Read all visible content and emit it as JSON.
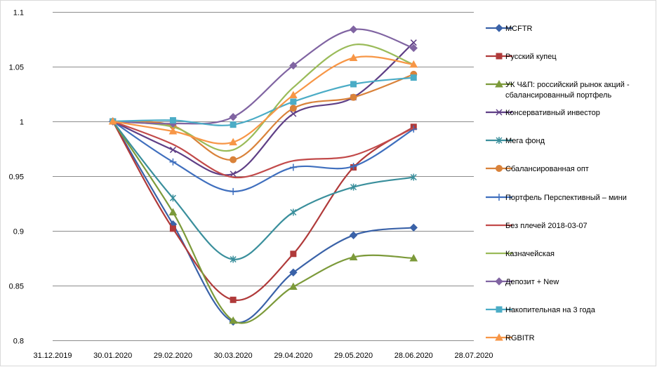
{
  "chart_data": {
    "type": "line",
    "title": "",
    "xlabel": "",
    "ylabel": "",
    "ylim": [
      0.8,
      1.1
    ],
    "yticks": [
      "0.8",
      "0.85",
      "0.9",
      "0.95",
      "1",
      "1.05",
      "1.1"
    ],
    "xtick_labels": [
      "31.12.2019",
      "30.01.2020",
      "29.02.2020",
      "30.03.2020",
      "29.04.2020",
      "29.05.2020",
      "28.06.2020",
      "28.07.2020"
    ],
    "x": [
      "30.01.2020",
      "29.02.2020",
      "30.03.2020",
      "29.04.2020",
      "29.05.2020",
      "28.06.2020"
    ],
    "grid": "horizontal",
    "legend": "right",
    "series": [
      {
        "name": "MCFTR",
        "color": "#3a62a8",
        "marker": "diamond",
        "values": [
          1.0,
          0.906,
          0.817,
          0.862,
          0.896,
          0.903
        ]
      },
      {
        "name": "Русский купец",
        "color": "#b03a3a",
        "marker": "square",
        "values": [
          1.0,
          0.902,
          0.837,
          0.879,
          0.958,
          0.995
        ]
      },
      {
        "name": "УК Ч&П:  российский рынок акций - сбалансированный портфель",
        "color": "#7c9a3a",
        "marker": "triangle",
        "values": [
          1.0,
          0.917,
          0.818,
          0.849,
          0.876,
          0.875
        ]
      },
      {
        "name": "Консервативный инвестор",
        "color": "#5f3f86",
        "marker": "x",
        "values": [
          1.0,
          0.974,
          0.952,
          1.007,
          1.022,
          1.072
        ]
      },
      {
        "name": "Мега фонд",
        "color": "#3a8f9c",
        "marker": "star",
        "values": [
          1.0,
          0.93,
          0.874,
          0.917,
          0.94,
          0.949
        ]
      },
      {
        "name": "Сбалансированная опт",
        "color": "#d9823a",
        "marker": "circle",
        "values": [
          1.0,
          0.996,
          0.965,
          1.012,
          1.022,
          1.043
        ]
      },
      {
        "name": "Портфель  Перспективный  – мини",
        "color": "#3f6fbe",
        "marker": "plus",
        "values": [
          1.0,
          0.963,
          0.936,
          0.958,
          0.959,
          0.993
        ]
      },
      {
        "name": "Без плечей  2018-03-07",
        "color": "#c24a4a",
        "marker": "none",
        "values": [
          1.0,
          0.979,
          0.949,
          0.964,
          0.969,
          0.994
        ]
      },
      {
        "name": "Казначейская",
        "color": "#9abb59",
        "marker": "none",
        "values": [
          1.0,
          0.995,
          0.974,
          1.031,
          1.07,
          1.052
        ]
      },
      {
        "name": "Депозит + New",
        "color": "#8064a2",
        "marker": "diamond",
        "values": [
          1.0,
          0.998,
          1.004,
          1.051,
          1.084,
          1.067
        ]
      },
      {
        "name": "Накопительная на 3 года",
        "color": "#4bacc6",
        "marker": "square",
        "values": [
          1.0,
          1.001,
          0.997,
          1.018,
          1.034,
          1.04
        ]
      },
      {
        "name": "RGBITR",
        "color": "#f79646",
        "marker": "triangle",
        "values": [
          1.0,
          0.991,
          0.981,
          1.024,
          1.058,
          1.052
        ]
      }
    ]
  }
}
